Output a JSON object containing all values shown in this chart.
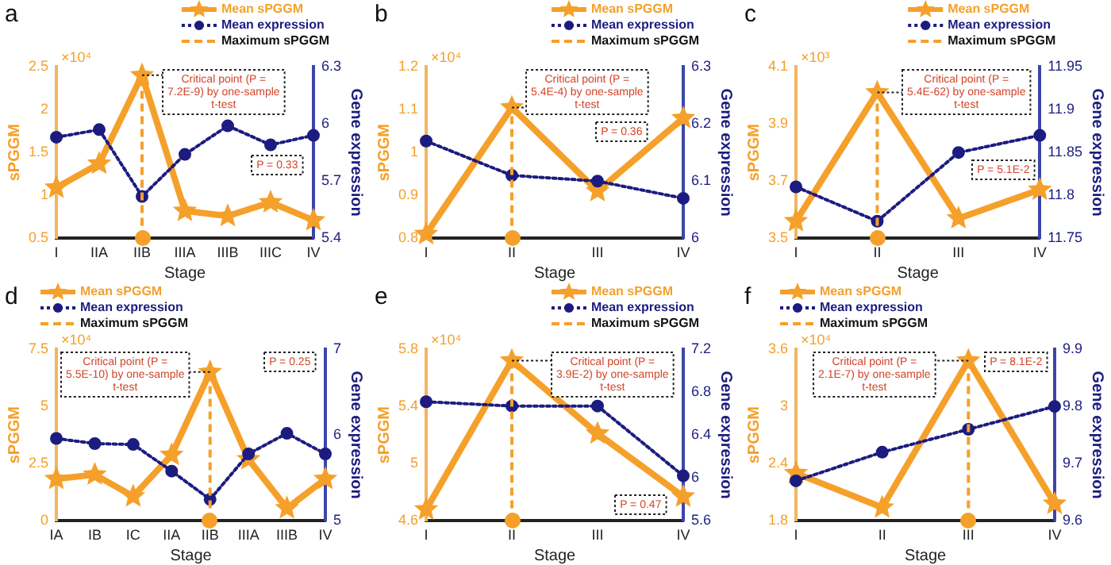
{
  "chart_data": [
    {
      "type": "line",
      "title": "a",
      "xlabel": "Stage",
      "ylabel": "sPGGM",
      "y2label": "Gene expression",
      "legend": "top right",
      "categories": [
        "I",
        "IIA",
        "IIB",
        "IIIA",
        "IIIB",
        "IIIC",
        "IV"
      ],
      "series": [
        {
          "name": "Mean sPGGM",
          "color": "#f5a02a",
          "marker": "star",
          "line_style": "solid",
          "values": [
            1.09,
            1.37,
            2.4,
            0.82,
            0.76,
            0.92,
            0.71
          ]
        },
        {
          "name": "Mean expression",
          "color": "#1c1c80",
          "marker": "circle",
          "line_style": "dotted",
          "axis": "y2",
          "values": [
            5.93,
            5.97,
            5.62,
            5.84,
            5.99,
            5.89,
            5.94
          ]
        }
      ],
      "ylim": [
        0.5,
        2.5
      ],
      "yticks": [
        0.5,
        1,
        1.5,
        2,
        2.5
      ],
      "y2lim": [
        5.4,
        6.3
      ],
      "y2ticks": [
        5.4,
        5.7,
        6,
        6.3
      ],
      "ref_lines": [
        {
          "axis": "x",
          "value": "IIB",
          "label": "Maximum sPGGM",
          "color": "#f5a02a",
          "line_style": "dashed"
        }
      ],
      "annotations": [
        "×10⁴",
        {
          "text": "Critical point (P = 7.2E-9) by one-sample t-test",
          "x": "IIB",
          "y": 2.4
        },
        "P = 0.33"
      ]
    },
    {
      "type": "line",
      "title": "b",
      "xlabel": "Stage",
      "ylabel": "sPGGM",
      "y2label": "Gene expression",
      "legend": "top right",
      "categories": [
        "I",
        "II",
        "III",
        "IV"
      ],
      "series": [
        {
          "name": "Mean sPGGM",
          "color": "#f5a02a",
          "marker": "star",
          "line_style": "solid",
          "values": [
            0.81,
            1.105,
            0.91,
            1.08
          ]
        },
        {
          "name": "Mean expression",
          "color": "#1c1c80",
          "marker": "circle",
          "line_style": "dotted",
          "axis": "y2",
          "values": [
            6.17,
            6.11,
            6.1,
            6.07
          ]
        }
      ],
      "ylim": [
        0.8,
        1.2
      ],
      "yticks": [
        0.8,
        0.9,
        1,
        1.1,
        1.2
      ],
      "y2lim": [
        6,
        6.3
      ],
      "y2ticks": [
        6,
        6.1,
        6.2,
        6.3
      ],
      "ref_lines": [
        {
          "axis": "x",
          "value": "II",
          "label": "Maximum sPGGM",
          "color": "#f5a02a",
          "line_style": "dashed"
        }
      ],
      "annotations": [
        "×10⁴",
        {
          "text": "Critical point (P = 5.4E-4) by one-sample t-test",
          "x": "II",
          "y": 1.105
        },
        "P = 0.36"
      ]
    },
    {
      "type": "line",
      "title": "c",
      "xlabel": "Stage",
      "ylabel": "sPGGM",
      "y2label": "Gene expression",
      "legend": "top right",
      "categories": [
        "I",
        "II",
        "III",
        "IV"
      ],
      "series": [
        {
          "name": "Mean sPGGM",
          "color": "#f5a02a",
          "marker": "star",
          "line_style": "solid",
          "values": [
            3.56,
            4.01,
            3.57,
            3.67
          ]
        },
        {
          "name": "Mean expression",
          "color": "#1c1c80",
          "marker": "circle",
          "line_style": "dotted",
          "axis": "y2",
          "values": [
            11.81,
            11.77,
            11.85,
            11.87
          ]
        }
      ],
      "ylim": [
        3.5,
        4.1
      ],
      "yticks": [
        3.5,
        3.7,
        3.9,
        4.1
      ],
      "y2lim": [
        11.75,
        11.95
      ],
      "y2ticks": [
        11.75,
        11.8,
        11.85,
        11.9,
        11.95
      ],
      "ref_lines": [
        {
          "axis": "x",
          "value": "II",
          "label": "Maximum sPGGM",
          "color": "#f5a02a",
          "line_style": "dashed"
        }
      ],
      "annotations": [
        "×10³",
        {
          "text": "Critical point (P = 5.4E-62) by one-sample t-test",
          "x": "II",
          "y": 4.01
        },
        "P = 5.1E-2"
      ]
    },
    {
      "type": "line",
      "title": "d",
      "xlabel": "Stage",
      "ylabel": "sPGGM",
      "y2label": "Gene expression",
      "legend": "top left",
      "categories": [
        "IA",
        "IB",
        "IC",
        "IIA",
        "IIB",
        "IIIA",
        "IIIB",
        "IV"
      ],
      "series": [
        {
          "name": "Mean sPGGM",
          "color": "#f5a02a",
          "marker": "star",
          "line_style": "solid",
          "values": [
            1.83,
            2.02,
            1.07,
            2.88,
            6.5,
            2.69,
            0.55,
            1.83
          ]
        },
        {
          "name": "Mean expression",
          "color": "#1c1c80",
          "marker": "circle",
          "line_style": "dotted",
          "axis": "y2",
          "values": [
            5.96,
            5.9,
            5.89,
            5.58,
            5.25,
            5.78,
            6.02,
            5.78
          ]
        }
      ],
      "ylim": [
        0,
        7.5
      ],
      "yticks": [
        0,
        2.5,
        5,
        7.5
      ],
      "y2lim": [
        5,
        7
      ],
      "y2ticks": [
        5,
        6,
        7
      ],
      "ref_lines": [
        {
          "axis": "x",
          "value": "IIB",
          "label": "Maximum sPGGM",
          "color": "#f5a02a",
          "line_style": "dashed"
        }
      ],
      "annotations": [
        "×10⁴",
        {
          "text": "Critical point (P = 5.5E-10) by one-sample t-test",
          "x": "IIB",
          "y": 6.5
        },
        "P = 0.25"
      ]
    },
    {
      "type": "line",
      "title": "e",
      "xlabel": "Stage",
      "ylabel": "sPGGM",
      "y2label": "Gene expression",
      "legend": "top right",
      "categories": [
        "I",
        "II",
        "III",
        "IV"
      ],
      "series": [
        {
          "name": "Mean sPGGM",
          "color": "#f5a02a",
          "marker": "star",
          "line_style": "solid",
          "values": [
            4.68,
            5.72,
            5.21,
            4.77
          ]
        },
        {
          "name": "Mean expression",
          "color": "#1c1c80",
          "marker": "circle",
          "line_style": "dotted",
          "axis": "y2",
          "values": [
            6.71,
            6.67,
            6.67,
            6.02
          ]
        }
      ],
      "ylim": [
        4.6,
        5.8
      ],
      "yticks": [
        4.6,
        5,
        5.4,
        5.8
      ],
      "y2lim": [
        5.6,
        7.2
      ],
      "y2ticks": [
        5.6,
        6,
        6.4,
        6.8,
        7.2
      ],
      "ref_lines": [
        {
          "axis": "x",
          "value": "II",
          "label": "Maximum sPGGM",
          "color": "#f5a02a",
          "line_style": "dashed"
        }
      ],
      "annotations": [
        "×10⁴",
        {
          "text": "Critical point (P = 3.9E-2) by one-sample t-test",
          "x": "II",
          "y": 5.72
        },
        "P = 0.47"
      ]
    },
    {
      "type": "line",
      "title": "f",
      "xlabel": "Stage",
      "ylabel": "sPGGM",
      "y2label": "Gene expression",
      "legend": "top left",
      "categories": [
        "I",
        "II",
        "III",
        "IV"
      ],
      "series": [
        {
          "name": "Mean sPGGM",
          "color": "#f5a02a",
          "marker": "star",
          "line_style": "solid",
          "values": [
            2.3,
            1.94,
            3.48,
            1.98
          ]
        },
        {
          "name": "Mean expression",
          "color": "#1c1c80",
          "marker": "circle",
          "line_style": "dotted",
          "axis": "y2",
          "values": [
            9.67,
            9.72,
            9.76,
            9.8
          ]
        }
      ],
      "ylim": [
        1.8,
        3.6
      ],
      "yticks": [
        1.8,
        2.4,
        3,
        3.6
      ],
      "y2lim": [
        9.6,
        9.9
      ],
      "y2ticks": [
        9.6,
        9.7,
        9.8,
        9.9
      ],
      "ref_lines": [
        {
          "axis": "x",
          "value": "III",
          "label": "Maximum sPGGM",
          "color": "#f5a02a",
          "line_style": "dashed"
        }
      ],
      "annotations": [
        "×10⁴",
        {
          "text": "Critical point (P = 2.1E-7) by one-sample t-test",
          "x": "III",
          "y": 3.48
        },
        "P = 8.1E-2"
      ]
    }
  ]
}
